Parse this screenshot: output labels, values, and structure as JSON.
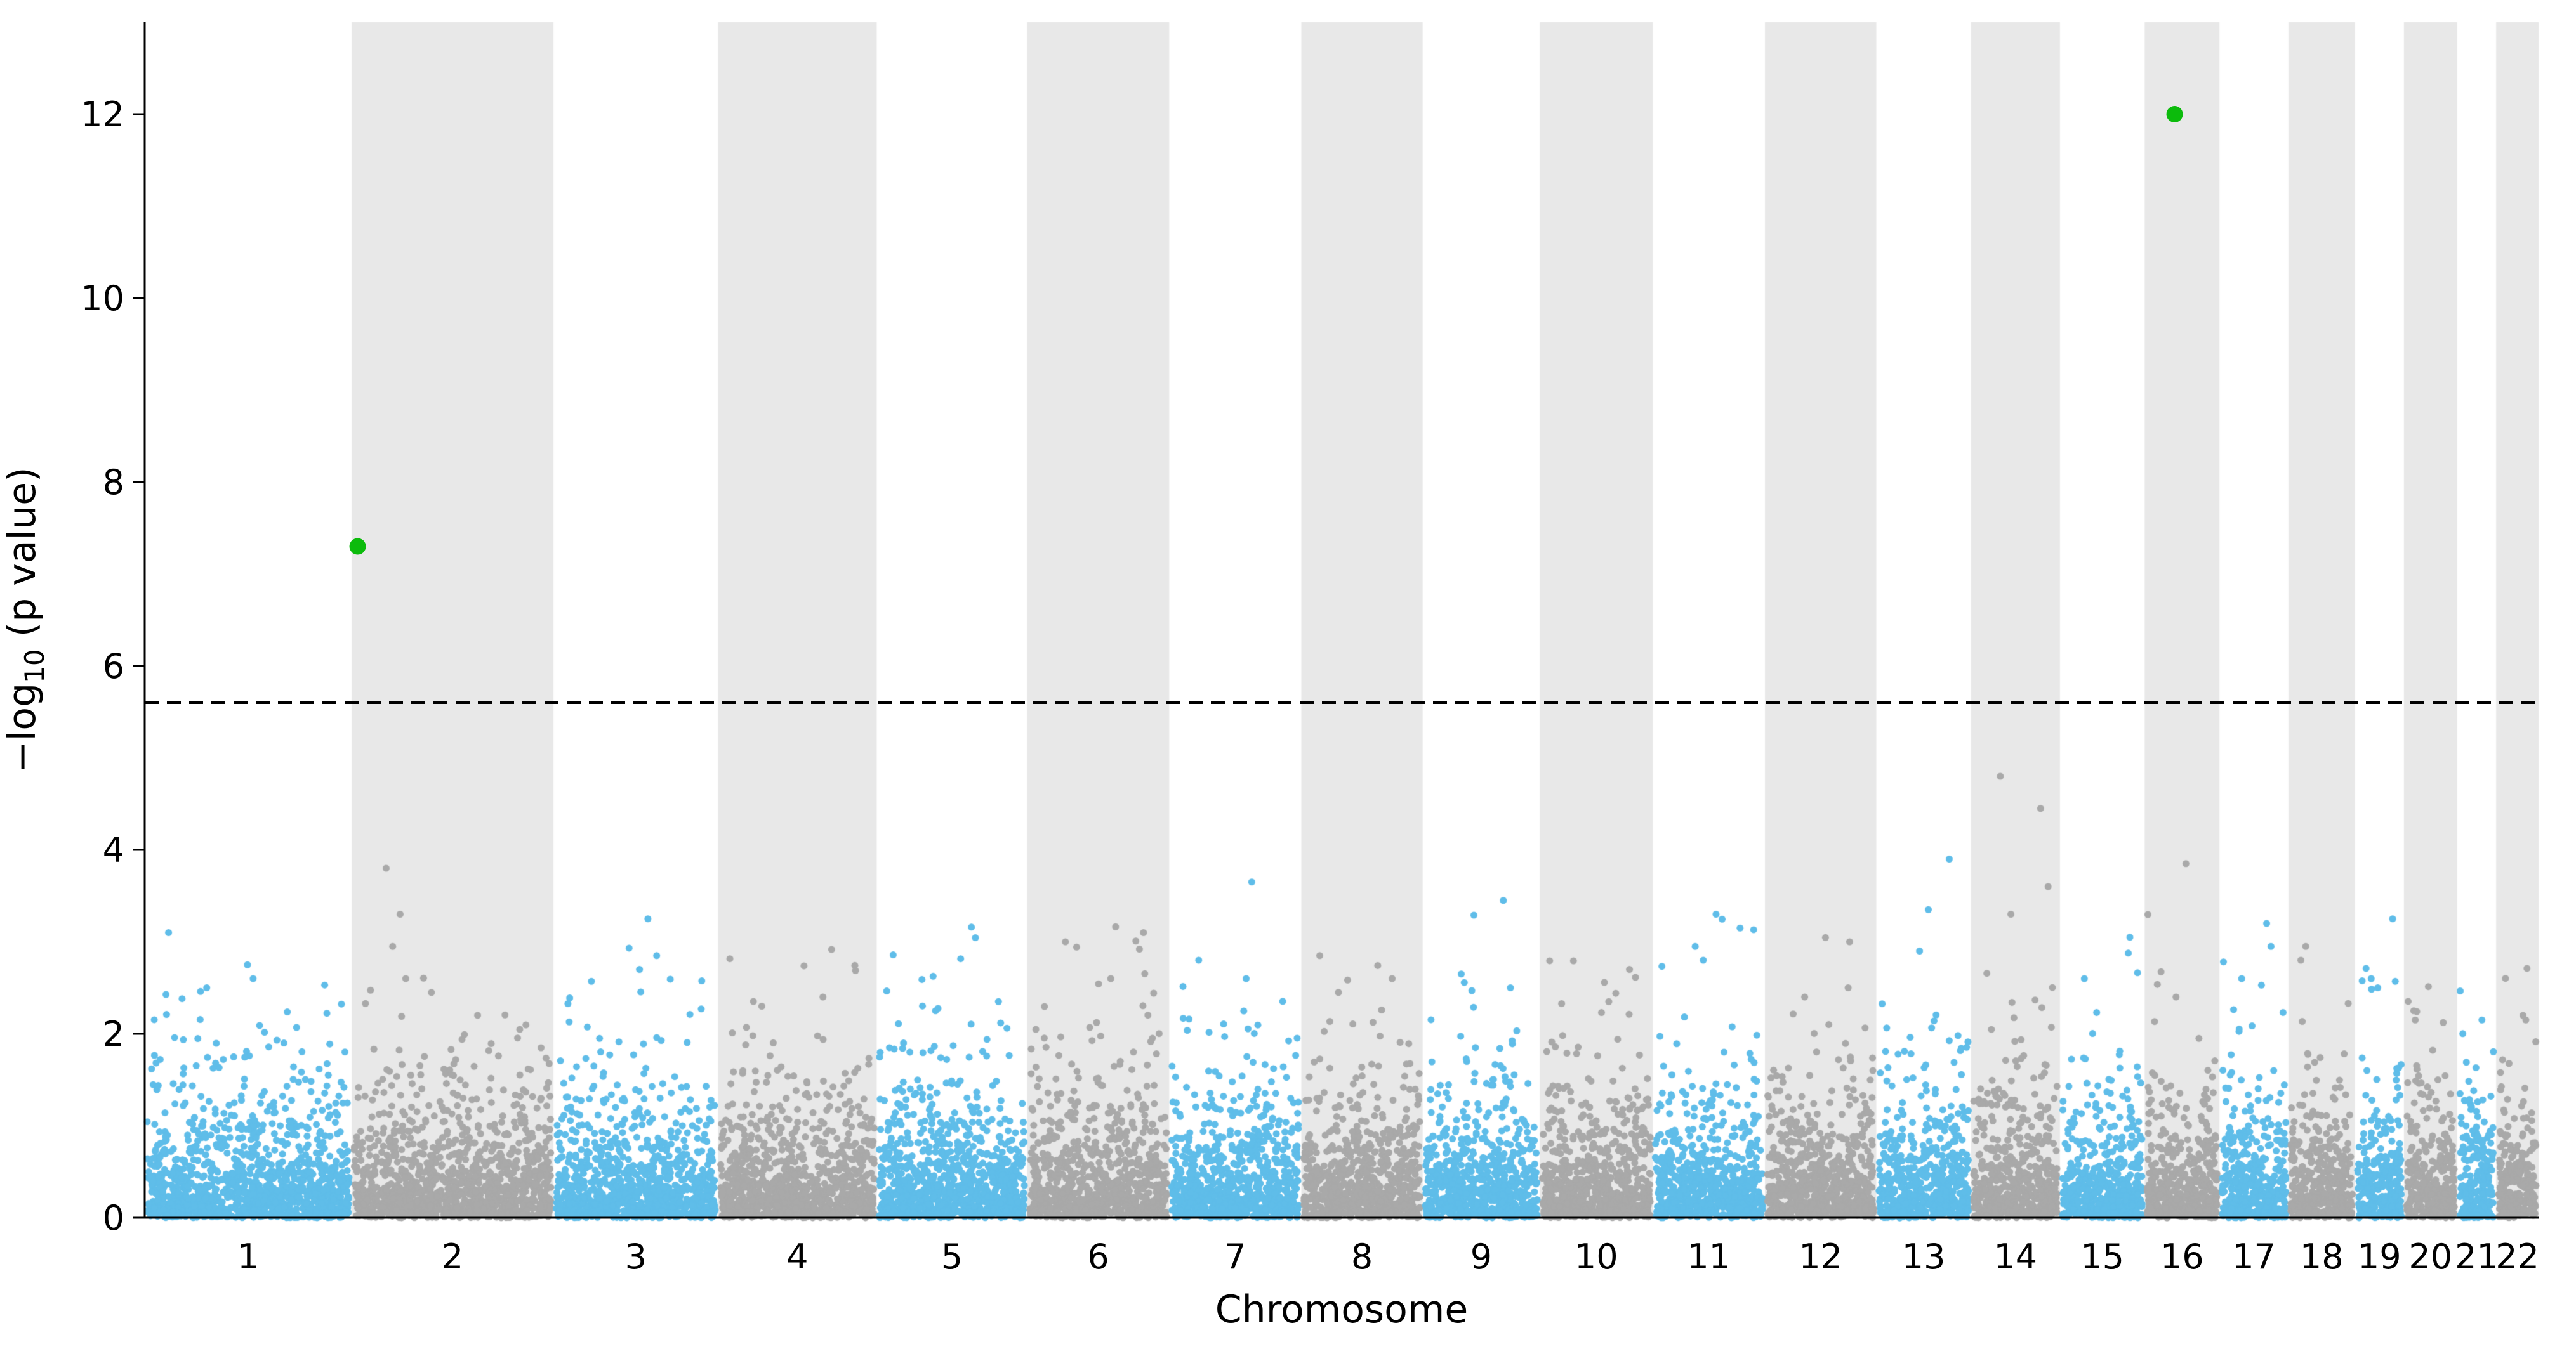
{
  "figure": {
    "background": "#ffffff"
  },
  "chart_data": {
    "type": "scatter",
    "subtype": "manhattan-gwas",
    "title": "",
    "xlabel": "Chromosome",
    "ylabel": {
      "pre": "−log",
      "sub": "10",
      "post": " (p value)"
    },
    "ylim": [
      0,
      13
    ],
    "yticks": [
      0,
      2,
      4,
      6,
      8,
      10,
      12
    ],
    "ytick_labels": [
      "0",
      "2",
      "4",
      "6",
      "8",
      "10",
      "12"
    ],
    "grid": false,
    "legend": null,
    "background_bands": "even-numbered chromosomes shaded light gray",
    "threshold_line": {
      "neg_log10_p": 5.6,
      "style": "dashed",
      "color": "#000000"
    },
    "significant_points": [
      {
        "chromosome": "2",
        "rel_pos": 0.03,
        "neg_log10_p": 7.3,
        "color": "#0cbb0c"
      },
      {
        "chromosome": "16",
        "rel_pos": 0.4,
        "neg_log10_p": 12.0,
        "color": "#0cbb0c"
      }
    ],
    "colors": {
      "odd_chromosome_points": "#5fbde9",
      "even_chromosome_points": "#a9a9a9",
      "highlight": "#0cbb0c",
      "band_fill": "#e8e8e8",
      "axis": "#000000"
    },
    "cloud": {
      "points_per_mb": 5,
      "seed": 42,
      "max_background": 3.4
    },
    "chromosomes": [
      {
        "label": "1",
        "size_mb": 249,
        "top_points": [
          3.1,
          2.75,
          2.6,
          2.5
        ]
      },
      {
        "label": "2",
        "size_mb": 243,
        "top_points": [
          3.8,
          3.3,
          2.95,
          2.6
        ]
      },
      {
        "label": "3",
        "size_mb": 198,
        "top_points": [
          3.25,
          2.85,
          2.7
        ]
      },
      {
        "label": "4",
        "size_mb": 191,
        "top_points": [
          2.4,
          2.3
        ]
      },
      {
        "label": "5",
        "size_mb": 181,
        "top_points": [
          2.35,
          2.25
        ]
      },
      {
        "label": "6",
        "size_mb": 171,
        "top_points": [
          3.1,
          3.0,
          2.6
        ]
      },
      {
        "label": "7",
        "size_mb": 159,
        "top_points": [
          3.65,
          2.8,
          2.6
        ]
      },
      {
        "label": "8",
        "size_mb": 146,
        "top_points": [
          2.85,
          2.6,
          2.45
        ]
      },
      {
        "label": "9",
        "size_mb": 141,
        "top_points": [
          3.45,
          2.65,
          2.5
        ]
      },
      {
        "label": "10",
        "size_mb": 136,
        "top_points": [
          2.7,
          2.35
        ]
      },
      {
        "label": "11",
        "size_mb": 135,
        "top_points": [
          3.3,
          3.15,
          2.95,
          2.8
        ]
      },
      {
        "label": "12",
        "size_mb": 134,
        "top_points": [
          3.0,
          2.5,
          2.4
        ]
      },
      {
        "label": "13",
        "size_mb": 114,
        "top_points": [
          3.9,
          3.35,
          2.9
        ]
      },
      {
        "label": "14",
        "size_mb": 107,
        "top_points": [
          4.8,
          4.45,
          3.6,
          3.3
        ]
      },
      {
        "label": "15",
        "size_mb": 102,
        "top_points": [
          3.05,
          2.6
        ]
      },
      {
        "label": "16",
        "size_mb": 90,
        "top_points": [
          3.85,
          2.4
        ]
      },
      {
        "label": "17",
        "size_mb": 83,
        "top_points": [
          3.2,
          2.95,
          2.6
        ]
      },
      {
        "label": "18",
        "size_mb": 80,
        "top_points": [
          2.95,
          2.8
        ]
      },
      {
        "label": "19",
        "size_mb": 59,
        "top_points": [
          3.25,
          2.6,
          2.5
        ]
      },
      {
        "label": "20",
        "size_mb": 64,
        "top_points": [
          2.25,
          2.15
        ]
      },
      {
        "label": "21",
        "size_mb": 47,
        "top_points": [
          2.15
        ]
      },
      {
        "label": "22",
        "size_mb": 51,
        "top_points": [
          2.2,
          2.15
        ]
      }
    ]
  }
}
